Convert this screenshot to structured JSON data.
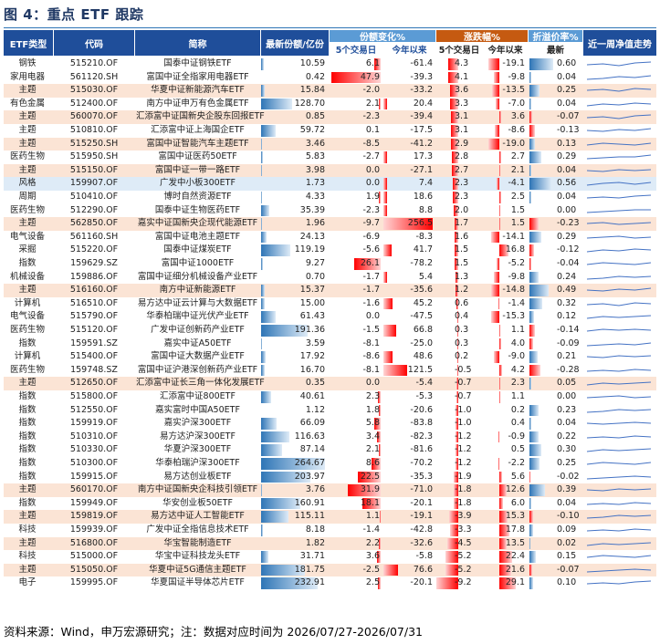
{
  "title": "图 4：重点 ETF 跟踪",
  "header": {
    "type": "ETF类型",
    "code": "代码",
    "name": "简称",
    "size": "最新份额/亿份",
    "share_change": "份额变化%",
    "return": "涨跌幅%",
    "premium": "折溢价率%",
    "spark": "近一周净值走势",
    "d5": "5个交易日",
    "ytd": "今年以来",
    "latest": "最新"
  },
  "colors": {
    "navy": "#1f4e9a",
    "header_light": "#5b9bd5",
    "header_orange": "#c55a11",
    "highlight_row": "#fbe4d5",
    "bar_red": "#ff0000",
    "bar_blue": "#2e75b6"
  },
  "rows": [
    {
      "type": "钢铁",
      "code": "515210.OF",
      "name": "国泰中证钢铁ETF",
      "size": "10.59",
      "d5": "6.1",
      "ytd": "-61.4",
      "r5": "4.3",
      "rytd": "-19.1",
      "prem": "0.60",
      "hl": "",
      "spark": [
        0.4,
        0.5,
        0.3,
        0.6,
        0.7
      ]
    },
    {
      "type": "家用电器",
      "code": "561120.SH",
      "name": "富国中证全指家用电器ETF",
      "size": "0.42",
      "d5": "47.9",
      "ytd": "-39.3",
      "r5": "4.1",
      "rytd": "-9.8",
      "prem": "0.04",
      "hl": "",
      "spark": [
        0.3,
        0.4,
        0.6,
        0.5,
        0.7
      ]
    },
    {
      "type": "主题",
      "code": "515030.OF",
      "name": "华夏中证新能源汽车ETF",
      "size": "15.84",
      "d5": "-2.0",
      "ytd": "-33.2",
      "r5": "3.6",
      "rytd": "-13.5",
      "prem": "0.25",
      "hl": "hl",
      "spark": [
        0.5,
        0.6,
        0.4,
        0.7,
        0.6
      ]
    },
    {
      "type": "有色金属",
      "code": "512400.OF",
      "name": "南方中证申万有色金属ETF",
      "size": "128.70",
      "d5": "2.1",
      "ytd": "20.4",
      "r5": "3.3",
      "rytd": "-7.0",
      "prem": "0.04",
      "hl": "",
      "spark": [
        0.3,
        0.5,
        0.4,
        0.6,
        0.5
      ]
    },
    {
      "type": "主题",
      "code": "560070.OF",
      "name": "汇添富中证国新央企股东回报ETF",
      "size": "0.85",
      "d5": "-2.3",
      "ytd": "-39.4",
      "r5": "3.1",
      "rytd": "3.6",
      "prem": "-0.07",
      "hl": "hl",
      "spark": [
        0.4,
        0.5,
        0.3,
        0.6,
        0.7
      ]
    },
    {
      "type": "主题",
      "code": "510810.OF",
      "name": "汇添富中证上海国企ETF",
      "size": "59.72",
      "d5": "0.1",
      "ytd": "-17.5",
      "r5": "3.1",
      "rytd": "-8.6",
      "prem": "-0.13",
      "hl": "",
      "spark": [
        0.5,
        0.4,
        0.6,
        0.5,
        0.7
      ]
    },
    {
      "type": "主题",
      "code": "515250.SH",
      "name": "富国中证智能汽车主题ETF",
      "size": "3.46",
      "d5": "-8.5",
      "ytd": "-41.2",
      "r5": "2.9",
      "rytd": "-19.0",
      "prem": "0.13",
      "hl": "hl",
      "spark": [
        0.4,
        0.6,
        0.5,
        0.4,
        0.6
      ]
    },
    {
      "type": "医药生物",
      "code": "515950.SH",
      "name": "富国中证医药50ETF",
      "size": "5.83",
      "d5": "-2.7",
      "ytd": "17.3",
      "r5": "2.8",
      "rytd": "2.7",
      "prem": "0.29",
      "hl": "",
      "spark": [
        0.3,
        0.4,
        0.5,
        0.5,
        0.7
      ]
    },
    {
      "type": "主题",
      "code": "515150.OF",
      "name": "富国中证一带一路ETF",
      "size": "3.98",
      "d5": "0.0",
      "ytd": "-27.1",
      "r5": "2.7",
      "rytd": "2.1",
      "prem": "0.04",
      "hl": "hl",
      "spark": [
        0.5,
        0.4,
        0.6,
        0.5,
        0.6
      ]
    },
    {
      "type": "风格",
      "code": "159907.OF",
      "name": "广发中小板300ETF",
      "size": "1.73",
      "d5": "0.0",
      "ytd": "7.4",
      "r5": "2.3",
      "rytd": "-4.1",
      "prem": "0.56",
      "hl": "hl-blue",
      "spark": [
        0.3,
        0.5,
        0.6,
        0.4,
        0.6
      ]
    },
    {
      "type": "周期",
      "code": "510410.OF",
      "name": "博时自然资源ETF",
      "size": "4.33",
      "d5": "1.9",
      "ytd": "18.6",
      "r5": "2.3",
      "rytd": "2.5",
      "prem": "0.04",
      "hl": "",
      "spark": [
        0.4,
        0.5,
        0.4,
        0.6,
        0.7
      ]
    },
    {
      "type": "医药生物",
      "code": "512290.OF",
      "name": "国泰中证生物医药ETF",
      "size": "35.39",
      "d5": "-2.3",
      "ytd": "8.8",
      "r5": "2.0",
      "rytd": "1.5",
      "prem": "0.00",
      "hl": "",
      "spark": [
        0.3,
        0.4,
        0.5,
        0.6,
        0.6
      ]
    },
    {
      "type": "主题",
      "code": "562850.OF",
      "name": "嘉实中证国新央企现代能源ETF",
      "size": "1.96",
      "d5": "-9.7",
      "ytd": "256.5",
      "r5": "1.7",
      "rytd": "1.5",
      "prem": "-0.23",
      "hl": "hl",
      "spark": [
        0.5,
        0.6,
        0.4,
        0.5,
        0.6
      ]
    },
    {
      "type": "电气设备",
      "code": "561160.SH",
      "name": "富国中证电池主题ETF",
      "size": "24.13",
      "d5": "-6.9",
      "ytd": "-8.3",
      "r5": "1.6",
      "rytd": "-14.1",
      "prem": "0.29",
      "hl": "",
      "spark": [
        0.4,
        0.5,
        0.6,
        0.4,
        0.5
      ]
    },
    {
      "type": "采掘",
      "code": "515220.OF",
      "name": "国泰中证煤炭ETF",
      "size": "119.19",
      "d5": "-5.6",
      "ytd": "41.7",
      "r5": "1.5",
      "rytd": "16.8",
      "prem": "-0.12",
      "hl": "",
      "spark": [
        0.3,
        0.5,
        0.4,
        0.6,
        0.5
      ]
    },
    {
      "type": "指数",
      "code": "159629.SZ",
      "name": "富国中证1000ETF",
      "size": "9.27",
      "d5": "26.1",
      "ytd": "-78.2",
      "r5": "1.5",
      "rytd": "-5.2",
      "prem": "-0.04",
      "hl": "",
      "spark": [
        0.4,
        0.6,
        0.5,
        0.4,
        0.6
      ]
    },
    {
      "type": "机械设备",
      "code": "159886.OF",
      "name": "富国中证细分机械设备产业ETF",
      "size": "0.70",
      "d5": "-1.7",
      "ytd": "5.4",
      "r5": "1.3",
      "rytd": "-9.8",
      "prem": "0.24",
      "hl": "",
      "spark": [
        0.3,
        0.4,
        0.6,
        0.5,
        0.6
      ]
    },
    {
      "type": "主题",
      "code": "516160.OF",
      "name": "南方中证新能源ETF",
      "size": "15.37",
      "d5": "-1.7",
      "ytd": "-35.6",
      "r5": "1.2",
      "rytd": "-14.8",
      "prem": "0.49",
      "hl": "hl",
      "spark": [
        0.5,
        0.4,
        0.6,
        0.5,
        0.7
      ]
    },
    {
      "type": "计算机",
      "code": "516510.OF",
      "name": "易方达中证云计算与大数据ETF",
      "size": "15.00",
      "d5": "-1.6",
      "ytd": "45.2",
      "r5": "0.6",
      "rytd": "-1.4",
      "prem": "0.32",
      "hl": "",
      "spark": [
        0.4,
        0.5,
        0.3,
        0.6,
        0.5
      ]
    },
    {
      "type": "电气设备",
      "code": "515790.OF",
      "name": "华泰柏瑞中证光伏产业ETF",
      "size": "61.43",
      "d5": "0.0",
      "ytd": "-47.5",
      "r5": "0.4",
      "rytd": "-15.3",
      "prem": "0.12",
      "hl": "",
      "spark": [
        0.3,
        0.5,
        0.4,
        0.5,
        0.6
      ]
    },
    {
      "type": "医药生物",
      "code": "515120.OF",
      "name": "广发中证创新药产业ETF",
      "size": "191.36",
      "d5": "-1.5",
      "ytd": "66.8",
      "r5": "0.3",
      "rytd": "1.1",
      "prem": "-0.14",
      "hl": "",
      "spark": [
        0.4,
        0.6,
        0.5,
        0.6,
        0.5
      ]
    },
    {
      "type": "指数",
      "code": "159591.SZ",
      "name": "嘉实中证A50ETF",
      "size": "3.59",
      "d5": "-8.1",
      "ytd": "-25.0",
      "r5": "0.3",
      "rytd": "4.0",
      "prem": "-0.09",
      "hl": "",
      "spark": [
        0.3,
        0.4,
        0.5,
        0.4,
        0.6
      ]
    },
    {
      "type": "计算机",
      "code": "515400.OF",
      "name": "富国中证大数据产业ETF",
      "size": "17.92",
      "d5": "-8.6",
      "ytd": "48.6",
      "r5": "0.2",
      "rytd": "-9.0",
      "prem": "0.21",
      "hl": "",
      "spark": [
        0.5,
        0.4,
        0.6,
        0.5,
        0.6
      ]
    },
    {
      "type": "医药生物",
      "code": "159748.SZ",
      "name": "富国中证沪港深创新药产业ETF",
      "size": "16.70",
      "d5": "-8.1",
      "ytd": "121.5",
      "r5": "-0.5",
      "rytd": "4.2",
      "prem": "-0.28",
      "hl": "",
      "spark": [
        0.4,
        0.5,
        0.4,
        0.6,
        0.5
      ]
    },
    {
      "type": "主题",
      "code": "512650.OF",
      "name": "汇添富中证长三角一体化发展ETF",
      "size": "0.35",
      "d5": "0.0",
      "ytd": "-5.4",
      "r5": "-0.7",
      "rytd": "2.3",
      "prem": "0.05",
      "hl": "hl",
      "spark": [
        0.3,
        0.5,
        0.4,
        0.5,
        0.6
      ]
    },
    {
      "type": "指数",
      "code": "515800.OF",
      "name": "汇添富中证800ETF",
      "size": "40.61",
      "d5": "2.3",
      "ytd": "-5.3",
      "r5": "-0.7",
      "rytd": "1.1",
      "prem": "0.00",
      "hl": "",
      "spark": [
        0.4,
        0.5,
        0.6,
        0.4,
        0.5
      ]
    },
    {
      "type": "指数",
      "code": "512550.OF",
      "name": "嘉实富时中国A50ETF",
      "size": "1.12",
      "d5": "1.8",
      "ytd": "-20.6",
      "r5": "-1.0",
      "rytd": "0.2",
      "prem": "0.23",
      "hl": "",
      "spark": [
        0.3,
        0.4,
        0.6,
        0.5,
        0.6
      ]
    },
    {
      "type": "指数",
      "code": "159919.OF",
      "name": "嘉实沪深300ETF",
      "size": "66.09",
      "d5": "5.8",
      "ytd": "-83.8",
      "r5": "-1.0",
      "rytd": "0.4",
      "prem": "0.04",
      "hl": "",
      "spark": [
        0.5,
        0.4,
        0.5,
        0.6,
        0.5
      ]
    },
    {
      "type": "指数",
      "code": "510310.OF",
      "name": "易方达沪深300ETF",
      "size": "116.63",
      "d5": "3.4",
      "ytd": "-82.3",
      "r5": "-1.2",
      "rytd": "-0.9",
      "prem": "0.22",
      "hl": "",
      "spark": [
        0.4,
        0.5,
        0.4,
        0.6,
        0.5
      ]
    },
    {
      "type": "指数",
      "code": "510330.OF",
      "name": "华夏沪深300ETF",
      "size": "87.14",
      "d5": "2.1",
      "ytd": "-81.6",
      "r5": "-1.2",
      "rytd": "0.5",
      "prem": "0.30",
      "hl": "",
      "spark": [
        0.3,
        0.5,
        0.4,
        0.5,
        0.6
      ]
    },
    {
      "type": "指数",
      "code": "510300.OF",
      "name": "华泰柏瑞沪深300ETF",
      "size": "264.67",
      "d5": "8.6",
      "ytd": "-70.2",
      "r5": "-1.2",
      "rytd": "-2.2",
      "prem": "0.25",
      "hl": "",
      "spark": [
        0.4,
        0.6,
        0.5,
        0.4,
        0.6
      ]
    },
    {
      "type": "指数",
      "code": "159915.OF",
      "name": "易方达创业板ETF",
      "size": "203.97",
      "d5": "22.5",
      "ytd": "-35.3",
      "r5": "-1.9",
      "rytd": "5.6",
      "prem": "-0.02",
      "hl": "",
      "spark": [
        0.3,
        0.4,
        0.5,
        0.6,
        0.5
      ]
    },
    {
      "type": "主题",
      "code": "560170.OF",
      "name": "南方中证国新央企科技引领ETF",
      "size": "3.76",
      "d5": "31.9",
      "ytd": "-71.0",
      "r5": "-1.8",
      "rytd": "12.6",
      "prem": "0.39",
      "hl": "hl",
      "spark": [
        0.5,
        0.4,
        0.6,
        0.5,
        0.6
      ]
    },
    {
      "type": "指数",
      "code": "159949.OF",
      "name": "华安创业板50ETF",
      "size": "160.91",
      "d5": "18.1",
      "ytd": "-20.1",
      "r5": "-1.8",
      "rytd": "6.0",
      "prem": "0.04",
      "hl": "",
      "spark": [
        0.4,
        0.5,
        0.4,
        0.6,
        0.5
      ]
    },
    {
      "type": "主题",
      "code": "159819.OF",
      "name": "易方达中证人工智能ETF",
      "size": "115.11",
      "d5": "1.1",
      "ytd": "-19.1",
      "r5": "-3.9",
      "rytd": "15.3",
      "prem": "-0.10",
      "hl": "hl",
      "spark": [
        0.3,
        0.4,
        0.6,
        0.5,
        0.6
      ]
    },
    {
      "type": "科技",
      "code": "159939.OF",
      "name": "广发中证全指信息技术ETF",
      "size": "8.18",
      "d5": "-1.4",
      "ytd": "-42.8",
      "r5": "-3.3",
      "rytd": "17.8",
      "prem": "0.09",
      "hl": "",
      "spark": [
        0.4,
        0.5,
        0.4,
        0.6,
        0.5
      ]
    },
    {
      "type": "主题",
      "code": "516800.OF",
      "name": "华宝智能制造ETF",
      "size": "1.82",
      "d5": "2.2",
      "ytd": "-32.6",
      "r5": "-4.5",
      "rytd": "13.5",
      "prem": "0.02",
      "hl": "hl",
      "spark": [
        0.3,
        0.5,
        0.4,
        0.5,
        0.6
      ]
    },
    {
      "type": "科技",
      "code": "515000.OF",
      "name": "华宝中证科技龙头ETF",
      "size": "31.71",
      "d5": "3.6",
      "ytd": "-5.8",
      "r5": "-5.2",
      "rytd": "22.4",
      "prem": "0.15",
      "hl": "",
      "spark": [
        0.4,
        0.6,
        0.5,
        0.4,
        0.6
      ]
    },
    {
      "type": "主题",
      "code": "515050.OF",
      "name": "华夏中证5G通信主题ETF",
      "size": "181.75",
      "d5": "-2.5",
      "ytd": "76.6",
      "r5": "-5.2",
      "rytd": "21.6",
      "prem": "-0.07",
      "hl": "hl",
      "spark": [
        0.3,
        0.4,
        0.5,
        0.6,
        0.5
      ]
    },
    {
      "type": "电子",
      "code": "159995.OF",
      "name": "华夏国证半导体芯片ETF",
      "size": "232.91",
      "d5": "2.5",
      "ytd": "-20.1",
      "r5": "-9.2",
      "rytd": "29.1",
      "prem": "0.10",
      "hl": "",
      "spark": [
        0.4,
        0.5,
        0.4,
        0.6,
        0.7
      ]
    }
  ],
  "footer": "资料来源：Wind，申万宏源研究；注：数据对应时间为 2026/07/27-2026/07/31"
}
